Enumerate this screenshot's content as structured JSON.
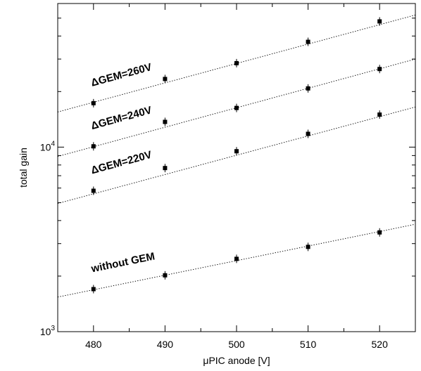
{
  "chart_data": {
    "type": "scatter",
    "xlabel": "μPIC anode [V]",
    "ylabel": "total gain",
    "xlim": [
      475,
      525
    ],
    "ylim": [
      1000,
      60000
    ],
    "yscale": "log",
    "grid": false,
    "x_ticks": [
      480,
      490,
      500,
      510,
      520
    ],
    "x_tick_labels": [
      "480",
      "490",
      "500",
      "510",
      "520"
    ],
    "y_ticks": [
      1000,
      10000
    ],
    "y_tick_labels": [
      {
        "base": "10",
        "exp": "3"
      },
      {
        "base": "10",
        "exp": "4"
      }
    ],
    "series": [
      {
        "label": "ΔGEM=260V",
        "x": [
          480,
          490,
          500,
          510,
          520
        ],
        "y": [
          17300,
          23400,
          28500,
          37200,
          48000
        ],
        "fit_endpoints_y": [
          15500,
          52000
        ]
      },
      {
        "label": "ΔGEM=240V",
        "x": [
          480,
          490,
          500,
          510,
          520
        ],
        "y": [
          10100,
          13700,
          16300,
          20800,
          26500
        ],
        "fit_endpoints_y": [
          8900,
          30000
        ]
      },
      {
        "label": "ΔGEM=220V",
        "x": [
          480,
          490,
          500,
          510,
          520
        ],
        "y": [
          5800,
          7700,
          9500,
          11800,
          15000
        ],
        "fit_endpoints_y": [
          4950,
          16500
        ]
      },
      {
        "label": "without GEM",
        "x": [
          480,
          490,
          500,
          510,
          520
        ],
        "y": [
          1700,
          2020,
          2480,
          2880,
          3450
        ],
        "fit_endpoints_y": [
          1540,
          3820
        ]
      }
    ],
    "annotations": [
      {
        "text": "ΔGEM=260V",
        "series": 0
      },
      {
        "text": "ΔGEM=240V",
        "series": 1
      },
      {
        "text": "ΔGEM=220V",
        "series": 2
      },
      {
        "text": "without GEM",
        "series": 3
      }
    ]
  }
}
